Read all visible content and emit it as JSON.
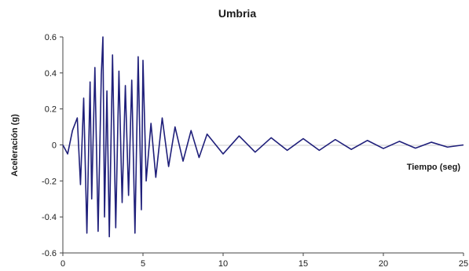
{
  "chart_data": {
    "type": "line",
    "title": "Umbria",
    "xlabel": "Tiempo (seg)",
    "ylabel": "Aceleración (g)",
    "xlim": [
      0,
      25
    ],
    "ylim": [
      -0.6,
      0.6
    ],
    "x_ticks": [
      "0",
      "5",
      "10",
      "15",
      "20",
      "25"
    ],
    "y_ticks": [
      "0.6",
      "0.4",
      "0.2",
      "0",
      "-0.2",
      "-0.4",
      "-0.6"
    ],
    "grid": false,
    "legend": "none",
    "color": "#1f1f7a",
    "series": [
      {
        "x": [
          0,
          0.3,
          0.6,
          0.9,
          1.1,
          1.3,
          1.5,
          1.7,
          1.8,
          2.0,
          2.2,
          2.4,
          2.5,
          2.6,
          2.75,
          2.9,
          3.1,
          3.3,
          3.5,
          3.7,
          3.9,
          4.1,
          4.3,
          4.5,
          4.7,
          4.9,
          5.0,
          5.2,
          5.5,
          5.8,
          6.2,
          6.6,
          7.0,
          7.5,
          8.0,
          8.5,
          9.0,
          10.0,
          11.0,
          12.0,
          13.0,
          14.0,
          15.0,
          16.0,
          17.0,
          18.0,
          19.0,
          20.0,
          21.0,
          22.0,
          23.0,
          24.0,
          25.0
        ],
        "values": [
          0.0,
          -0.05,
          0.08,
          0.15,
          -0.22,
          0.26,
          -0.49,
          0.35,
          -0.3,
          0.43,
          -0.48,
          0.39,
          0.6,
          -0.4,
          0.3,
          -0.51,
          0.5,
          -0.46,
          0.41,
          -0.32,
          0.33,
          -0.28,
          0.36,
          -0.49,
          0.49,
          -0.36,
          0.47,
          -0.2,
          0.12,
          -0.18,
          0.15,
          -0.12,
          0.1,
          -0.09,
          0.08,
          -0.07,
          0.06,
          -0.05,
          0.05,
          -0.04,
          0.04,
          -0.03,
          0.035,
          -0.03,
          0.03,
          -0.025,
          0.025,
          -0.02,
          0.02,
          -0.018,
          0.015,
          -0.012,
          0.0
        ]
      }
    ]
  }
}
